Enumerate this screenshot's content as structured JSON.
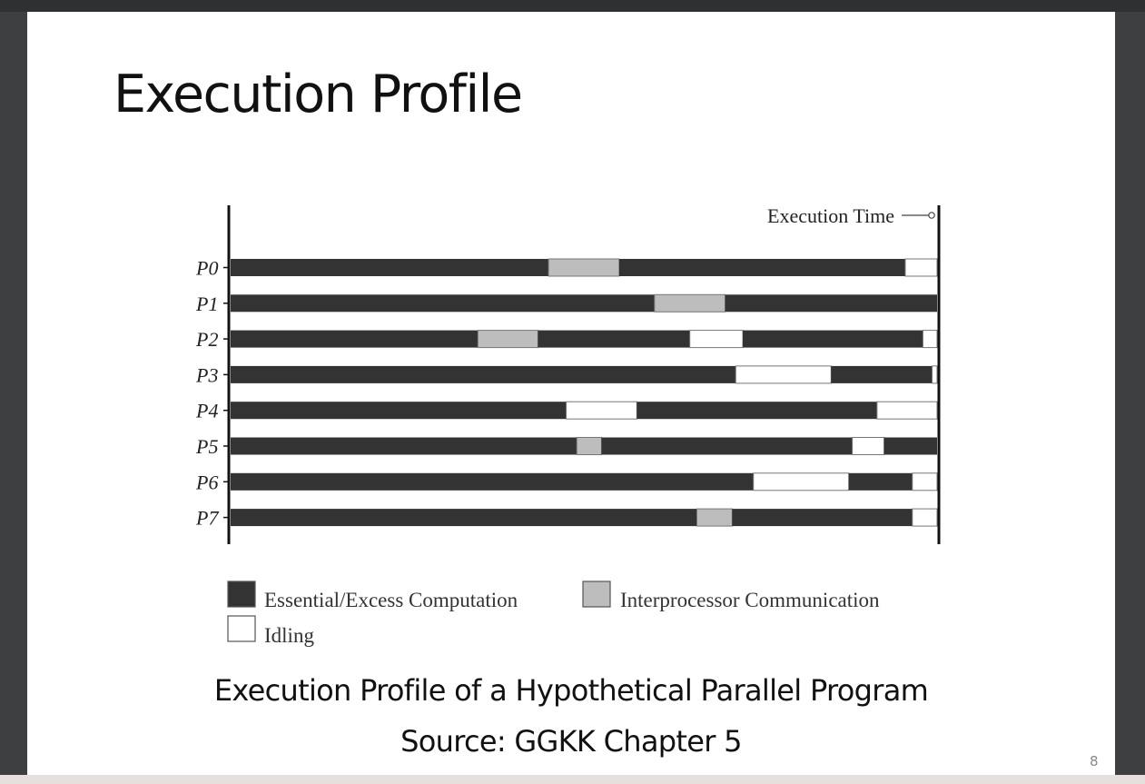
{
  "slide": {
    "title": "Execution Profile",
    "caption": "Execution Profile of a Hypothetical Parallel Program",
    "source": "Source: GGKK Chapter 5",
    "page_number": "8"
  },
  "chart_data": {
    "type": "gantt",
    "title": "",
    "marker_label": "Execution Time",
    "time_range": [
      0,
      100
    ],
    "states": [
      {
        "key": "comp",
        "name": "Essential/Excess Computation",
        "color": "#333333"
      },
      {
        "key": "comm",
        "name": "Interprocessor Communication",
        "color": "#bdbdbd"
      },
      {
        "key": "idle",
        "name": "Idling",
        "color": "#ffffff"
      }
    ],
    "processes": [
      {
        "name": "P0",
        "segments": [
          [
            "comp",
            0,
            45
          ],
          [
            "comm",
            45,
            55
          ],
          [
            "comp",
            55,
            95.5
          ],
          [
            "idle",
            95.5,
            100
          ]
        ]
      },
      {
        "name": "P1",
        "segments": [
          [
            "comp",
            0,
            60
          ],
          [
            "comm",
            60,
            70
          ],
          [
            "comp",
            70,
            100
          ]
        ]
      },
      {
        "name": "P2",
        "segments": [
          [
            "comp",
            0,
            35
          ],
          [
            "comm",
            35,
            43.5
          ],
          [
            "comp",
            43.5,
            65
          ],
          [
            "idle",
            65,
            72.5
          ],
          [
            "comp",
            72.5,
            98
          ],
          [
            "idle",
            98,
            100
          ]
        ]
      },
      {
        "name": "P3",
        "segments": [
          [
            "comp",
            0,
            71.5
          ],
          [
            "idle",
            71.5,
            85
          ],
          [
            "comp",
            85,
            99.3
          ],
          [
            "idle",
            99.3,
            100
          ]
        ]
      },
      {
        "name": "P4",
        "segments": [
          [
            "comp",
            0,
            47.5
          ],
          [
            "idle",
            47.5,
            57.5
          ],
          [
            "comp",
            57.5,
            91.5
          ],
          [
            "idle",
            91.5,
            100
          ]
        ]
      },
      {
        "name": "P5",
        "segments": [
          [
            "comp",
            0,
            49
          ],
          [
            "comm",
            49,
            52.5
          ],
          [
            "comp",
            52.5,
            88
          ],
          [
            "idle",
            88,
            92.5
          ],
          [
            "comp",
            92.5,
            100
          ]
        ]
      },
      {
        "name": "P6",
        "segments": [
          [
            "comp",
            0,
            74
          ],
          [
            "idle",
            74,
            87.5
          ],
          [
            "comp",
            87.5,
            96.5
          ],
          [
            "idle",
            96.5,
            100
          ]
        ]
      },
      {
        "name": "P7",
        "segments": [
          [
            "comp",
            0,
            66
          ],
          [
            "comm",
            66,
            71
          ],
          [
            "comp",
            71,
            96.5
          ],
          [
            "idle",
            96.5,
            100
          ]
        ]
      }
    ]
  }
}
